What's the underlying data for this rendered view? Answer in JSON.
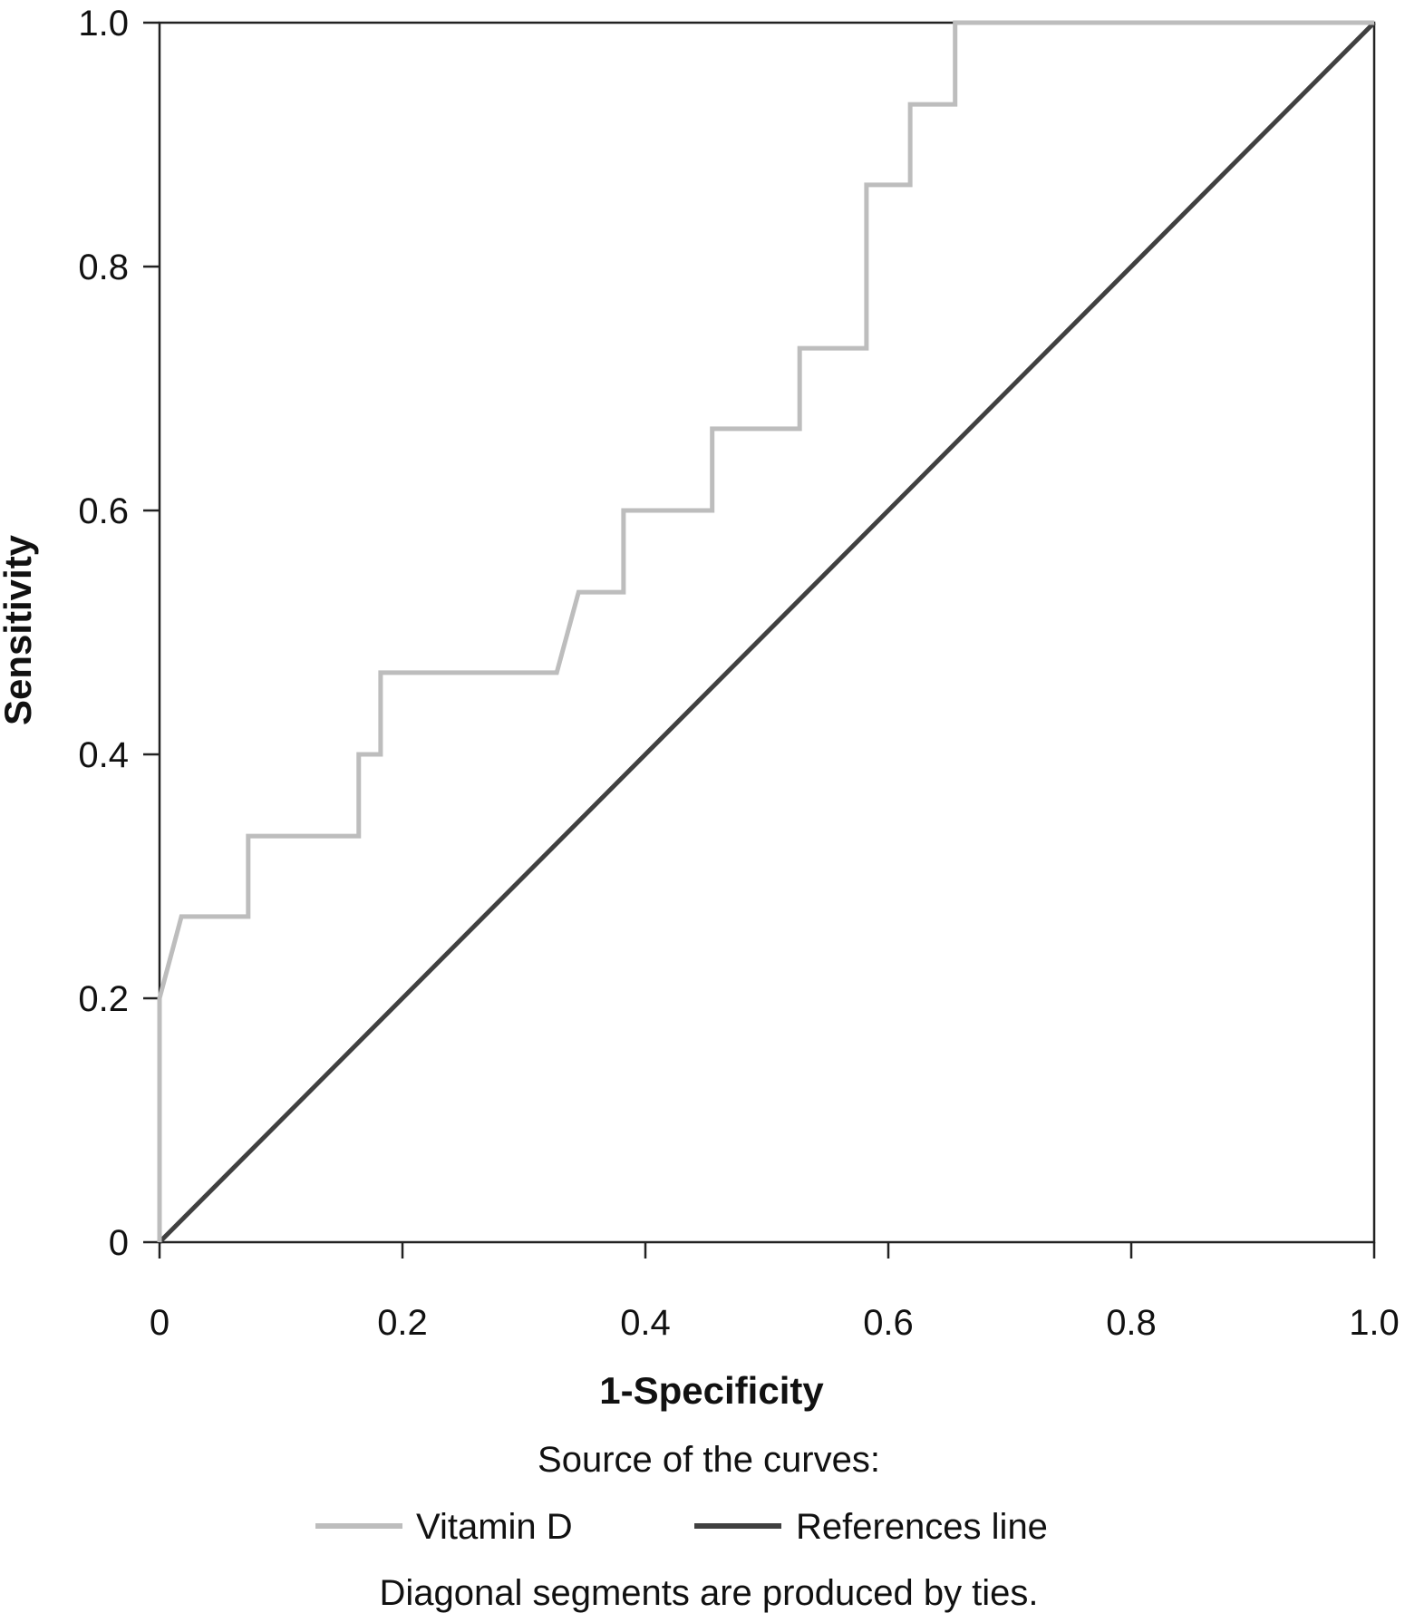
{
  "chart_data": {
    "type": "line",
    "title": "",
    "xlabel": "1-Specificity",
    "ylabel": "Sensitivity",
    "xlim": [
      0,
      1
    ],
    "ylim": [
      0,
      1
    ],
    "x_ticks": [
      0,
      0.2,
      0.4,
      0.6,
      0.8,
      1.0
    ],
    "x_tick_labels": [
      "0",
      "0.2",
      "0.4",
      "0.6",
      "0.8",
      "1.0"
    ],
    "y_ticks": [
      0,
      0.2,
      0.4,
      0.6,
      0.8,
      1.0
    ],
    "y_tick_labels": [
      "0",
      "0.2",
      "0.4",
      "0.6",
      "0.8",
      "1.0"
    ],
    "grid": false,
    "series": [
      {
        "name": "Vitamin D",
        "color": "#bdbdbd",
        "points": [
          [
            0,
            0
          ],
          [
            0,
            0.2
          ],
          [
            0.018,
            0.267
          ],
          [
            0.073,
            0.267
          ],
          [
            0.073,
            0.333
          ],
          [
            0.164,
            0.333
          ],
          [
            0.164,
            0.4
          ],
          [
            0.182,
            0.4
          ],
          [
            0.182,
            0.467
          ],
          [
            0.327,
            0.467
          ],
          [
            0.345,
            0.533
          ],
          [
            0.382,
            0.533
          ],
          [
            0.382,
            0.6
          ],
          [
            0.455,
            0.6
          ],
          [
            0.455,
            0.667
          ],
          [
            0.527,
            0.667
          ],
          [
            0.527,
            0.733
          ],
          [
            0.582,
            0.733
          ],
          [
            0.582,
            0.867
          ],
          [
            0.618,
            0.867
          ],
          [
            0.618,
            0.933
          ],
          [
            0.655,
            0.933
          ],
          [
            0.655,
            1.0
          ],
          [
            1.0,
            1.0
          ]
        ]
      },
      {
        "name": "References line",
        "color": "#404040",
        "points": [
          [
            0,
            0
          ],
          [
            1,
            1
          ]
        ]
      }
    ],
    "legend": {
      "title": "Source of the curves:",
      "position": "bottom",
      "entries": [
        "Vitamin D",
        "References line"
      ],
      "note": "Diagonal segments are produced by ties."
    }
  }
}
